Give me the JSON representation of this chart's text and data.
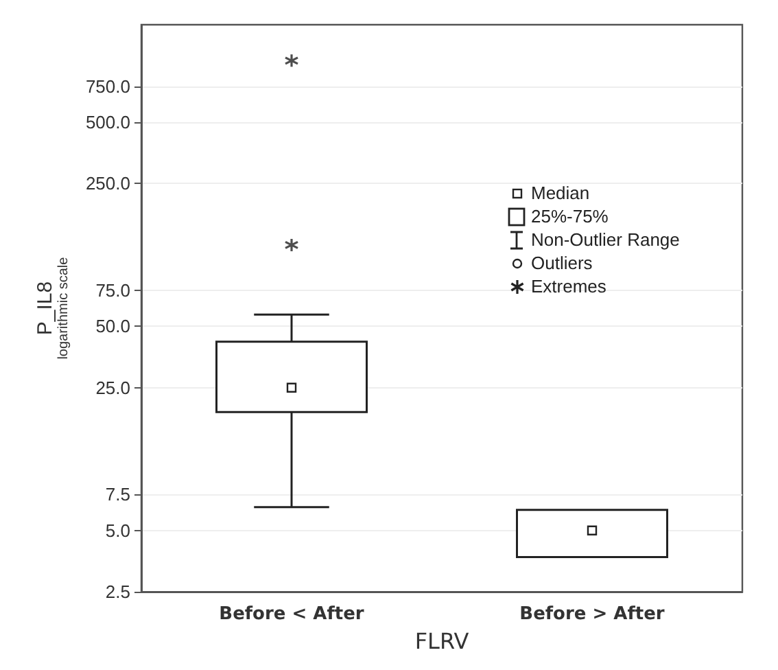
{
  "chart_data": {
    "type": "box",
    "ylabel": "P_IL8\nlogarithmic scale",
    "xlabel": "FLRV",
    "categories": [
      "Before < After",
      "Before > After"
    ],
    "boxes": [
      {
        "low": 6.5,
        "q1": 19,
        "median": 25,
        "q3": 42,
        "high": 57,
        "outliers": [
          1000,
          125
        ]
      },
      {
        "low": 3.7,
        "q1": 3.7,
        "median": 5,
        "q3": 6.3,
        "high": 6.3
      }
    ],
    "log": true,
    "ylim": [
      2.5,
      1500
    ],
    "yticks": [
      {
        "value": 2.5,
        "label": "2.5"
      },
      {
        "value": 5,
        "label": "5.0"
      },
      {
        "value": 7.5,
        "label": "7.5"
      },
      {
        "value": 25,
        "label": "25.0"
      },
      {
        "value": 50,
        "label": "50.0"
      },
      {
        "value": 75,
        "label": "75.0"
      },
      {
        "value": 250,
        "label": "250.0"
      },
      {
        "value": 500,
        "label": "500.0"
      },
      {
        "value": 750,
        "label": "750.0"
      }
    ],
    "grid": "y",
    "color": "#222222",
    "annotations": [
      "Median",
      "25%-75%",
      "Non-Outlier Range",
      "Outliers",
      "Extremes"
    ]
  }
}
